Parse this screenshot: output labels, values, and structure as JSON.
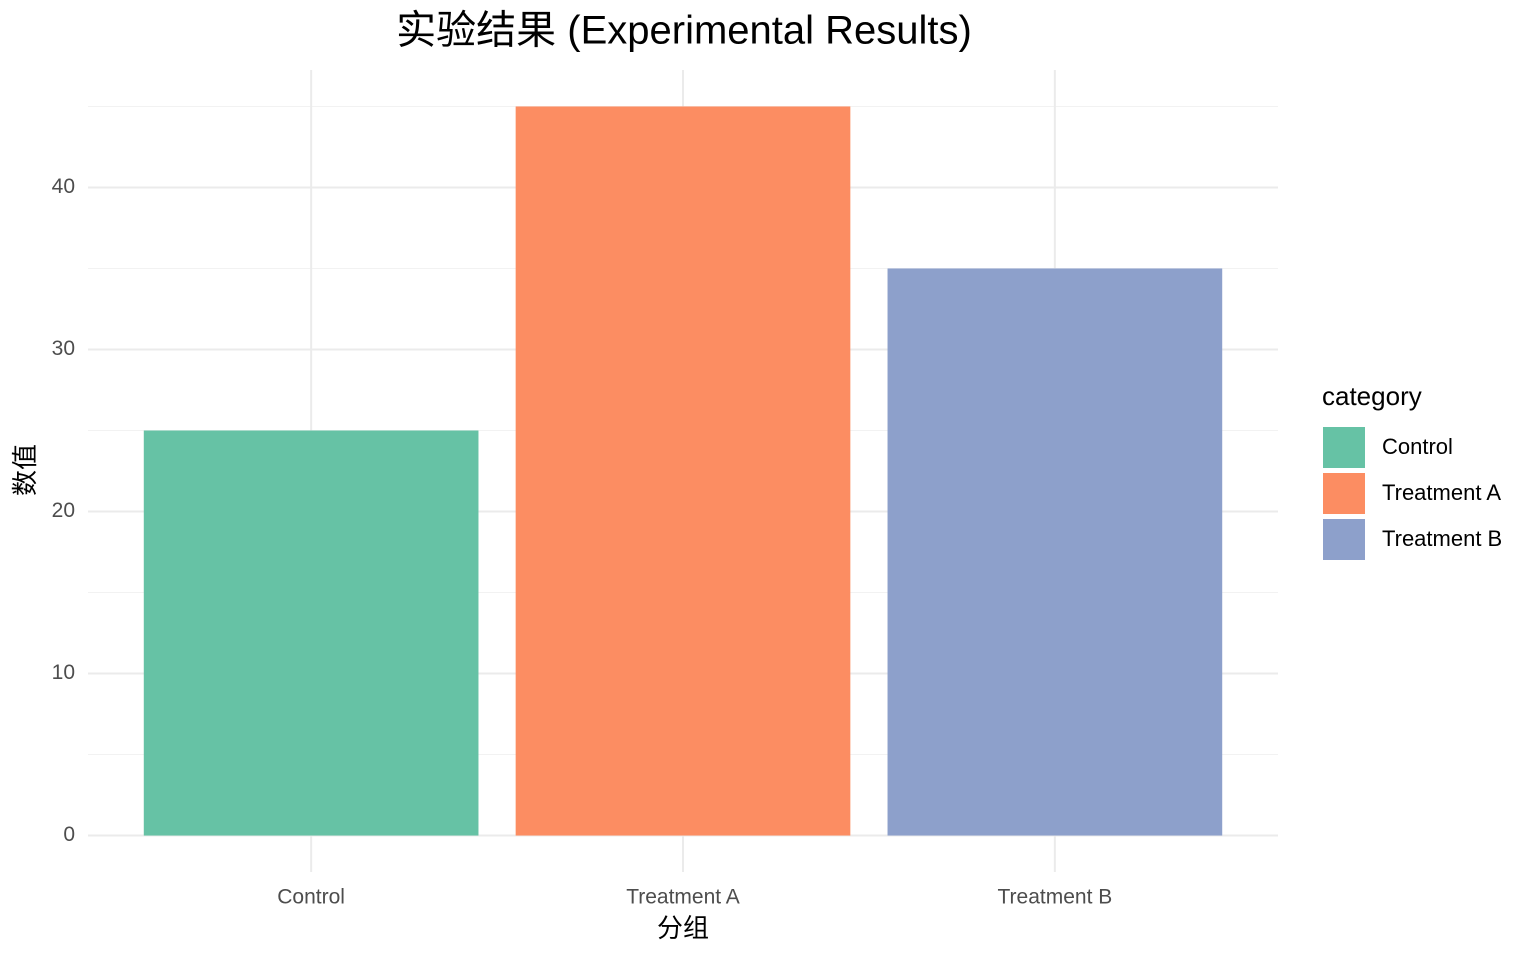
{
  "chart_data": {
    "type": "bar",
    "title": "实验结果 (Experimental Results)",
    "x_label": "分组",
    "y_label": "数值",
    "categories": [
      "Control",
      "Treatment A",
      "Treatment B"
    ],
    "values": [
      25,
      45,
      35
    ],
    "colors": [
      "#66c2a5",
      "#fc8d62",
      "#8da0cb"
    ],
    "ylim": [
      -2.25,
      47.25
    ],
    "yticks": [
      0,
      10,
      20,
      30,
      40
    ],
    "minor_yticks": [
      5,
      15,
      25,
      35,
      45
    ],
    "grid": true,
    "legend_title": "category",
    "legend_position": "right"
  }
}
